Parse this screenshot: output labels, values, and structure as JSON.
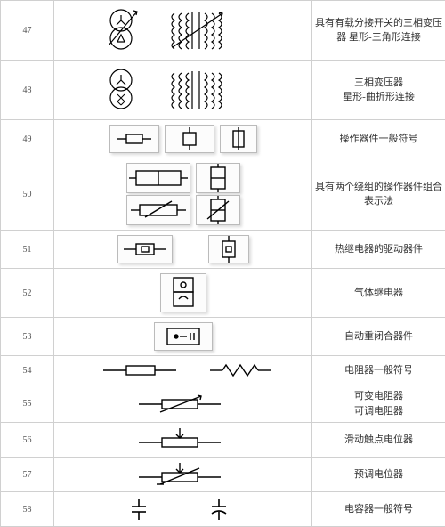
{
  "table": {
    "border_color": "#d0d0d0",
    "thumb_bg": "#fcfcfc",
    "thumb_border": "#bbbbbb",
    "rows": [
      {
        "idx": "47",
        "desc": "具有有载分接开关的三相变压器  星形-三角形连接"
      },
      {
        "idx": "48",
        "desc": "三相变压器\n星形-曲折形连接"
      },
      {
        "idx": "49",
        "desc": "操作器件一般符号"
      },
      {
        "idx": "50",
        "desc": "具有两个绕组的操作器件组合表示法"
      },
      {
        "idx": "51",
        "desc": "热继电器的驱动器件"
      },
      {
        "idx": "52",
        "desc": "气体继电器"
      },
      {
        "idx": "53",
        "desc": "自动重闭合器件"
      },
      {
        "idx": "54",
        "desc": "电阻器一般符号"
      },
      {
        "idx": "55",
        "desc": "可变电阻器\n可调电阻器"
      },
      {
        "idx": "56",
        "desc": "滑动触点电位器"
      },
      {
        "idx": "57",
        "desc": "预调电位器"
      },
      {
        "idx": "58",
        "desc": "电容器一般符号"
      }
    ]
  },
  "stroke": "#000000",
  "fontsize_idx": 10,
  "fontsize_desc": 11
}
